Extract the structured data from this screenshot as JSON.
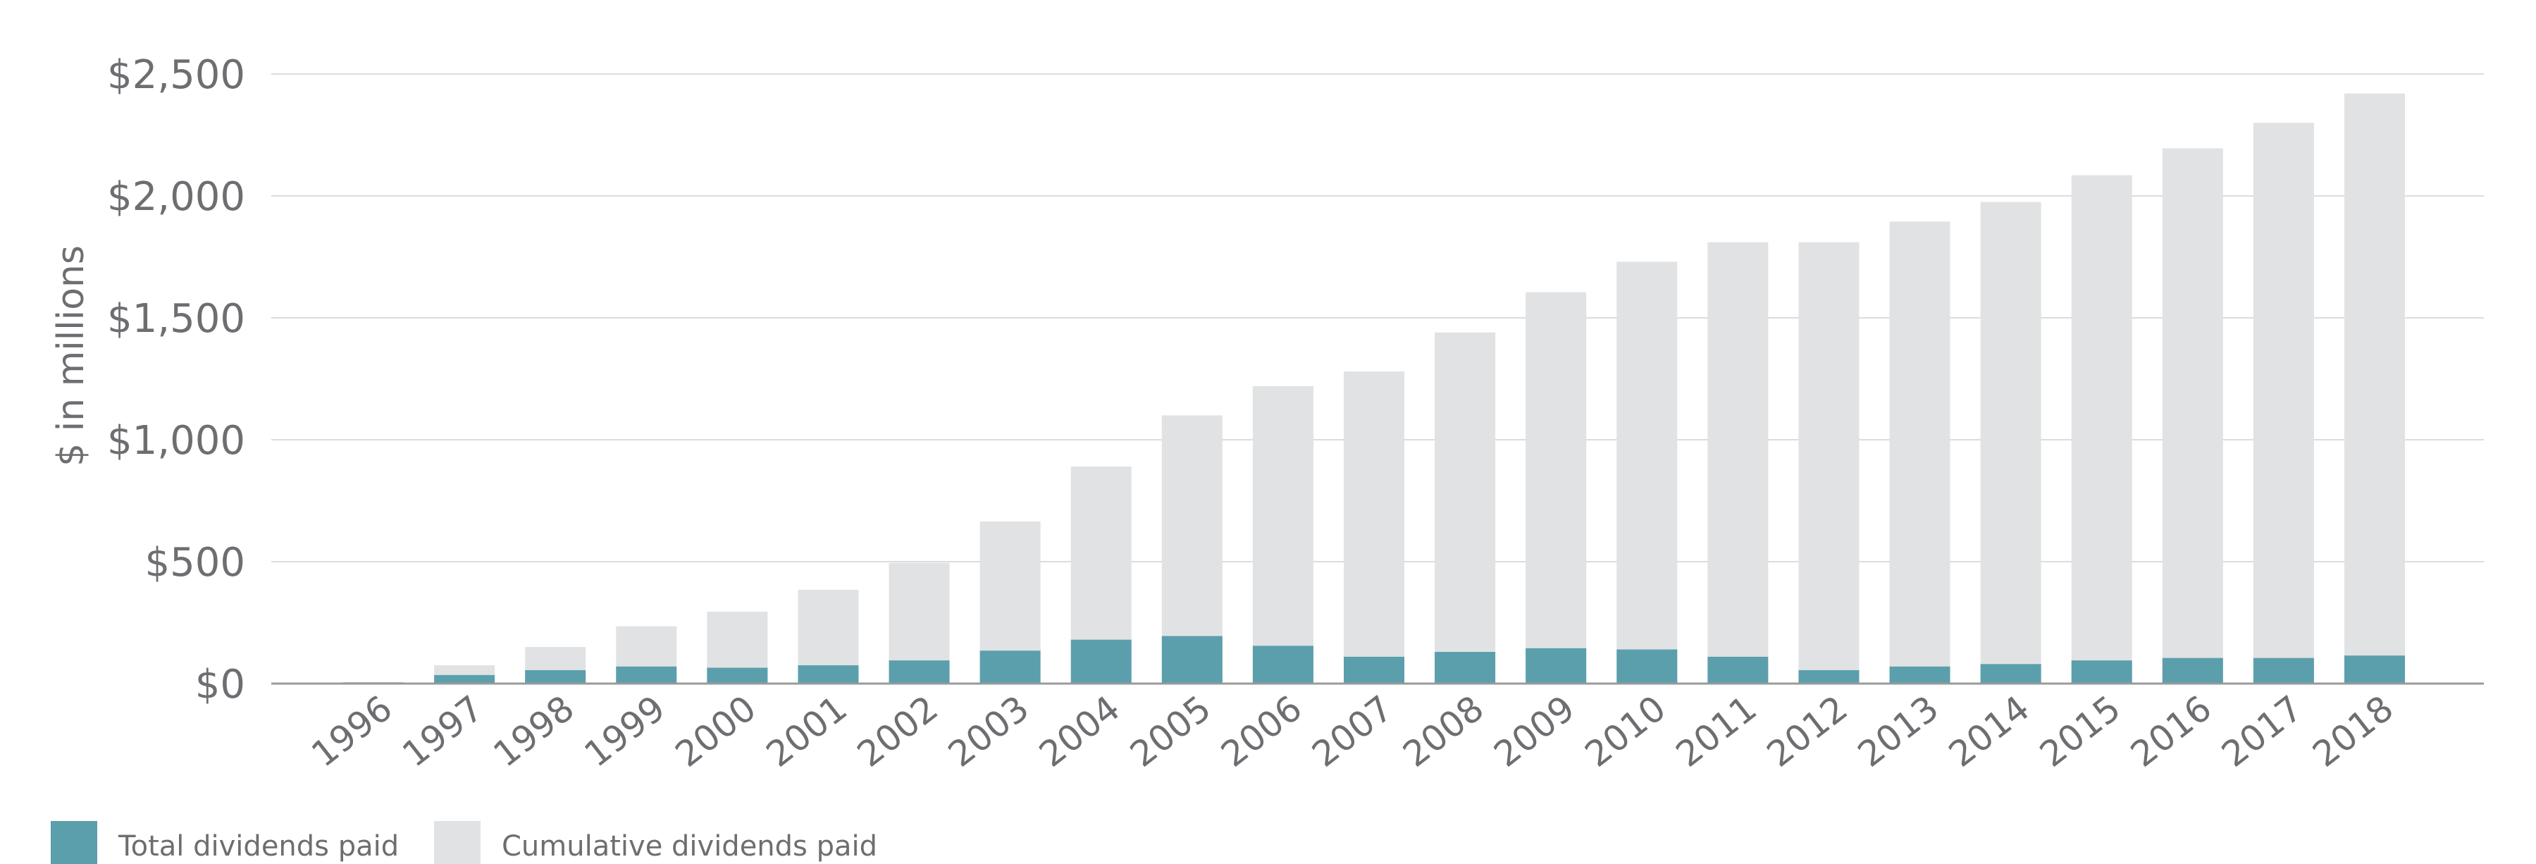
{
  "chart_data": {
    "type": "bar",
    "ylabel": "$ in millions",
    "ylim": [
      0,
      2500
    ],
    "yticks": [
      {
        "value": 0,
        "label": "$0"
      },
      {
        "value": 500,
        "label": "$500"
      },
      {
        "value": 1000,
        "label": "$1,000"
      },
      {
        "value": 1500,
        "label": "$1,500"
      },
      {
        "value": 2000,
        "label": "$2,000"
      },
      {
        "value": 2500,
        "label": "$2,500"
      }
    ],
    "grid": true,
    "legend_position": "bottom-left",
    "categories": [
      "1996",
      "1997",
      "1998",
      "1999",
      "2000",
      "2001",
      "2002",
      "2003",
      "2004",
      "2005",
      "2006",
      "2007",
      "2008",
      "2009",
      "2010",
      "2011",
      "2012",
      "2013",
      "2014",
      "2015",
      "2016",
      "2017",
      "2018"
    ],
    "series": [
      {
        "name": "Total dividends paid",
        "color": "#5b9fac",
        "values": [
          5,
          35,
          55,
          70,
          65,
          75,
          95,
          135,
          180,
          195,
          155,
          110,
          130,
          145,
          140,
          110,
          55,
          70,
          80,
          95,
          105,
          105,
          115
        ]
      },
      {
        "name": "Cumulative dividends paid",
        "color": "#e1e2e4",
        "values": [
          5,
          75,
          150,
          235,
          295,
          385,
          495,
          665,
          890,
          1100,
          1220,
          1280,
          1440,
          1605,
          1730,
          1810,
          1810,
          1895,
          1975,
          2085,
          2195,
          2300,
          2420
        ]
      }
    ]
  }
}
